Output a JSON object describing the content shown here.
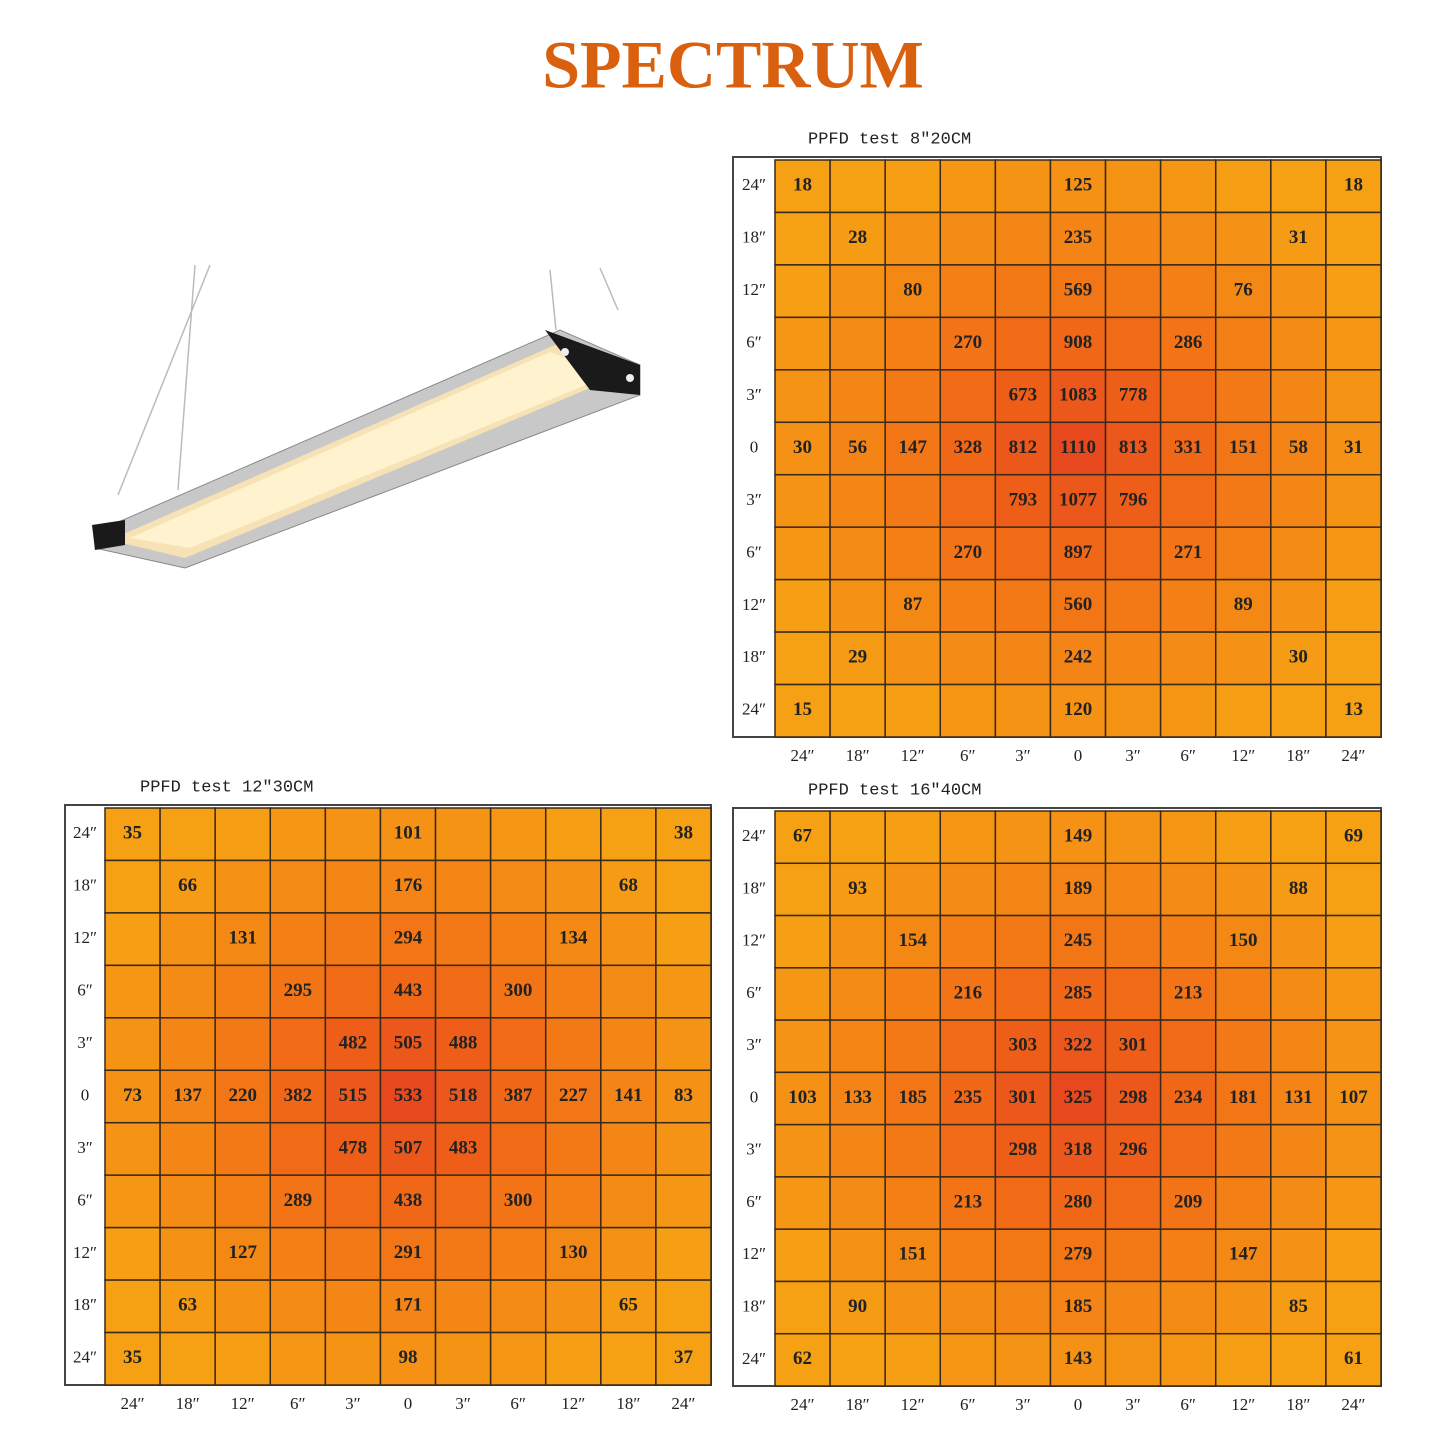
{
  "title": "SPECTRUM",
  "grids": [
    {
      "caption": "PPFD test   8″20CM",
      "row_labels": [
        "24″",
        "18″",
        "12″",
        "6″",
        "3″",
        "0",
        "3″",
        "6″",
        "12″",
        "18″",
        "24″"
      ],
      "col_labels": [
        "24″",
        "18″",
        "12″",
        "6″",
        "3″",
        "0",
        "3″",
        "6″",
        "12″",
        "18″",
        "24″"
      ],
      "rows": [
        [
          18,
          null,
          null,
          null,
          null,
          125,
          null,
          null,
          null,
          null,
          18
        ],
        [
          null,
          28,
          null,
          null,
          null,
          235,
          null,
          null,
          null,
          31,
          null
        ],
        [
          null,
          null,
          80,
          null,
          null,
          569,
          null,
          null,
          76,
          null,
          null
        ],
        [
          null,
          null,
          null,
          270,
          null,
          908,
          null,
          286,
          null,
          null,
          null
        ],
        [
          null,
          null,
          null,
          null,
          673,
          1083,
          778,
          null,
          null,
          null,
          null
        ],
        [
          30,
          56,
          147,
          328,
          812,
          1110,
          813,
          331,
          151,
          58,
          31
        ],
        [
          null,
          null,
          null,
          null,
          793,
          1077,
          796,
          null,
          null,
          null,
          null
        ],
        [
          null,
          null,
          null,
          270,
          null,
          897,
          null,
          271,
          null,
          null,
          null
        ],
        [
          null,
          null,
          87,
          null,
          null,
          560,
          null,
          null,
          89,
          null,
          null
        ],
        [
          null,
          29,
          null,
          null,
          null,
          242,
          null,
          null,
          null,
          30,
          null
        ],
        [
          15,
          null,
          null,
          null,
          null,
          120,
          null,
          null,
          null,
          null,
          13
        ]
      ]
    },
    {
      "caption": "PPFD test   12″30CM",
      "row_labels": [
        "24″",
        "18″",
        "12″",
        "6″",
        "3″",
        "0",
        "3″",
        "6″",
        "12″",
        "18″",
        "24″"
      ],
      "col_labels": [
        "24″",
        "18″",
        "12″",
        "6″",
        "3″",
        "0",
        "3″",
        "6″",
        "12″",
        "18″",
        "24″"
      ],
      "rows": [
        [
          35,
          null,
          null,
          null,
          null,
          101,
          null,
          null,
          null,
          null,
          38
        ],
        [
          null,
          66,
          null,
          null,
          null,
          176,
          null,
          null,
          null,
          68,
          null
        ],
        [
          null,
          null,
          131,
          null,
          null,
          294,
          null,
          null,
          134,
          null,
          null
        ],
        [
          null,
          null,
          null,
          295,
          null,
          443,
          null,
          300,
          null,
          null,
          null
        ],
        [
          null,
          null,
          null,
          null,
          482,
          505,
          488,
          null,
          null,
          null,
          null
        ],
        [
          73,
          137,
          220,
          382,
          515,
          533,
          518,
          387,
          227,
          141,
          83
        ],
        [
          null,
          null,
          null,
          null,
          478,
          507,
          483,
          null,
          null,
          null,
          null
        ],
        [
          null,
          null,
          null,
          289,
          null,
          438,
          null,
          300,
          null,
          null,
          null
        ],
        [
          null,
          null,
          127,
          null,
          null,
          291,
          null,
          null,
          130,
          null,
          null
        ],
        [
          null,
          63,
          null,
          null,
          null,
          171,
          null,
          null,
          null,
          65,
          null
        ],
        [
          35,
          null,
          null,
          null,
          null,
          98,
          null,
          null,
          null,
          null,
          37
        ]
      ]
    },
    {
      "caption": "PPFD test   16″40CM",
      "row_labels": [
        "24″",
        "18″",
        "12″",
        "6″",
        "3″",
        "0",
        "3″",
        "6″",
        "12″",
        "18″",
        "24″"
      ],
      "col_labels": [
        "24″",
        "18″",
        "12″",
        "6″",
        "3″",
        "0",
        "3″",
        "6″",
        "12″",
        "18″",
        "24″"
      ],
      "rows": [
        [
          67,
          null,
          null,
          null,
          null,
          149,
          null,
          null,
          null,
          null,
          69
        ],
        [
          null,
          93,
          null,
          null,
          null,
          189,
          null,
          null,
          null,
          88,
          null
        ],
        [
          null,
          null,
          154,
          null,
          null,
          245,
          null,
          null,
          150,
          null,
          null
        ],
        [
          null,
          null,
          null,
          216,
          null,
          285,
          null,
          213,
          null,
          null,
          null
        ],
        [
          null,
          null,
          null,
          null,
          303,
          322,
          301,
          null,
          null,
          null,
          null
        ],
        [
          103,
          133,
          185,
          235,
          301,
          325,
          298,
          234,
          181,
          131,
          107
        ],
        [
          null,
          null,
          null,
          null,
          298,
          318,
          296,
          null,
          null,
          null,
          null
        ],
        [
          null,
          null,
          null,
          213,
          null,
          280,
          null,
          209,
          null,
          null,
          null
        ],
        [
          null,
          null,
          151,
          null,
          null,
          279,
          null,
          null,
          147,
          null,
          null
        ],
        [
          null,
          90,
          null,
          null,
          null,
          185,
          null,
          null,
          null,
          85,
          null
        ],
        [
          62,
          null,
          null,
          null,
          null,
          143,
          null,
          null,
          null,
          null,
          61
        ]
      ]
    }
  ]
}
